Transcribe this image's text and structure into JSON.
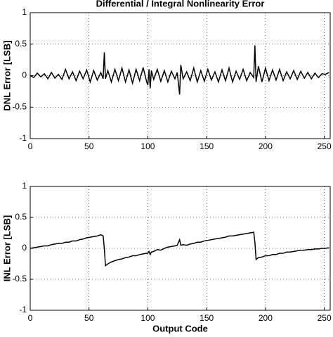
{
  "chart_data": [
    {
      "type": "line",
      "title": "Differential / Integral Nonlinearity Error",
      "y_label": "DNL Error [LSB]",
      "x": [
        0,
        3,
        6,
        9,
        12,
        15,
        18,
        21,
        24,
        27,
        30,
        33,
        36,
        39,
        42,
        45,
        48,
        51,
        54,
        57,
        60,
        62,
        63,
        64,
        66,
        69,
        72,
        75,
        78,
        81,
        84,
        87,
        90,
        93,
        96,
        99,
        100,
        101,
        102,
        103,
        105,
        108,
        111,
        114,
        117,
        120,
        123,
        125,
        127,
        128,
        130,
        133,
        136,
        139,
        142,
        145,
        148,
        151,
        154,
        157,
        160,
        163,
        166,
        169,
        172,
        175,
        178,
        181,
        184,
        187,
        190,
        191,
        192,
        194,
        197,
        200,
        203,
        206,
        209,
        212,
        215,
        218,
        221,
        224,
        227,
        230,
        233,
        236,
        239,
        242,
        245,
        248,
        251,
        254
      ],
      "values": [
        0,
        -0.03,
        0.04,
        -0.02,
        0.03,
        -0.05,
        0.05,
        -0.04,
        0.02,
        -0.06,
        0.1,
        -0.05,
        0.06,
        -0.08,
        0.07,
        -0.05,
        0.09,
        -0.1,
        0.08,
        -0.07,
        0.05,
        -0.05,
        0.37,
        -0.05,
        0.08,
        -0.1,
        0.1,
        -0.08,
        0.12,
        -0.1,
        0.09,
        -0.12,
        0.1,
        -0.08,
        0.13,
        -0.1,
        -0.15,
        0.1,
        -0.2,
        0.08,
        -0.06,
        0.1,
        -0.09,
        0.08,
        -0.1,
        0.07,
        -0.05,
        0.05,
        -0.3,
        0.17,
        -0.05,
        0.06,
        -0.08,
        0.12,
        -0.1,
        0.08,
        -0.09,
        0.1,
        -0.07,
        0.06,
        -0.1,
        0.09,
        -0.08,
        0.12,
        -0.1,
        0.07,
        -0.06,
        0.1,
        -0.08,
        0.05,
        -0.03,
        0.48,
        -0.1,
        0.15,
        -0.1,
        0.12,
        -0.08,
        0.09,
        -0.07,
        0.1,
        -0.08,
        0.06,
        -0.05,
        0.08,
        -0.06,
        0.07,
        -0.04,
        0.05,
        -0.05,
        0.04,
        -0.03,
        0.03,
        0.02,
        0.05
      ],
      "color": "#000000",
      "xlim": [
        0,
        255
      ],
      "ylim": [
        -1,
        1
      ],
      "xticks": [
        0,
        50,
        100,
        150,
        200,
        250
      ],
      "yticks": [
        -1,
        -0.5,
        0,
        0.5,
        1
      ],
      "grid": true
    },
    {
      "type": "line",
      "x_label": "Output Code",
      "y_label": "INL Error [LSB]",
      "x": [
        0,
        3,
        6,
        9,
        12,
        15,
        18,
        21,
        24,
        27,
        30,
        33,
        36,
        39,
        42,
        45,
        48,
        51,
        54,
        57,
        60,
        62,
        63,
        64,
        66,
        69,
        72,
        75,
        78,
        81,
        84,
        87,
        90,
        93,
        96,
        99,
        100,
        101,
        102,
        103,
        105,
        108,
        111,
        114,
        117,
        120,
        123,
        125,
        127,
        128,
        130,
        133,
        136,
        139,
        142,
        145,
        148,
        151,
        154,
        157,
        160,
        163,
        166,
        169,
        172,
        175,
        178,
        181,
        184,
        187,
        190,
        191,
        192,
        194,
        197,
        200,
        203,
        206,
        209,
        212,
        215,
        218,
        221,
        224,
        227,
        230,
        233,
        236,
        239,
        242,
        245,
        248,
        251,
        254
      ],
      "values": [
        0,
        0.01,
        0.02,
        0.03,
        0.04,
        0.04,
        0.06,
        0.07,
        0.08,
        0.08,
        0.1,
        0.1,
        0.12,
        0.12,
        0.14,
        0.15,
        0.17,
        0.18,
        0.19,
        0.2,
        0.22,
        0.2,
        0.0,
        -0.28,
        -0.25,
        -0.22,
        -0.2,
        -0.18,
        -0.17,
        -0.15,
        -0.14,
        -0.12,
        -0.12,
        -0.1,
        -0.09,
        -0.08,
        -0.08,
        -0.05,
        -0.1,
        -0.06,
        -0.05,
        -0.02,
        -0.03,
        0.0,
        0.02,
        0.03,
        0.04,
        0.05,
        0.14,
        0.05,
        0.06,
        0.05,
        0.07,
        0.08,
        0.1,
        0.1,
        0.12,
        0.13,
        0.14,
        0.15,
        0.16,
        0.17,
        0.18,
        0.2,
        0.2,
        0.21,
        0.22,
        0.23,
        0.24,
        0.25,
        0.26,
        0.1,
        -0.18,
        -0.15,
        -0.14,
        -0.12,
        -0.12,
        -0.1,
        -0.1,
        -0.08,
        -0.08,
        -0.06,
        -0.06,
        -0.05,
        -0.04,
        -0.03,
        -0.03,
        -0.02,
        -0.02,
        -0.01,
        -0.01,
        0.0,
        0.0,
        0.01
      ],
      "color": "#000000",
      "xlim": [
        0,
        255
      ],
      "ylim": [
        -1,
        1
      ],
      "xticks": [
        0,
        50,
        100,
        150,
        200,
        250
      ],
      "yticks": [
        -1,
        -0.5,
        0,
        0.5,
        1
      ],
      "grid": true
    }
  ]
}
